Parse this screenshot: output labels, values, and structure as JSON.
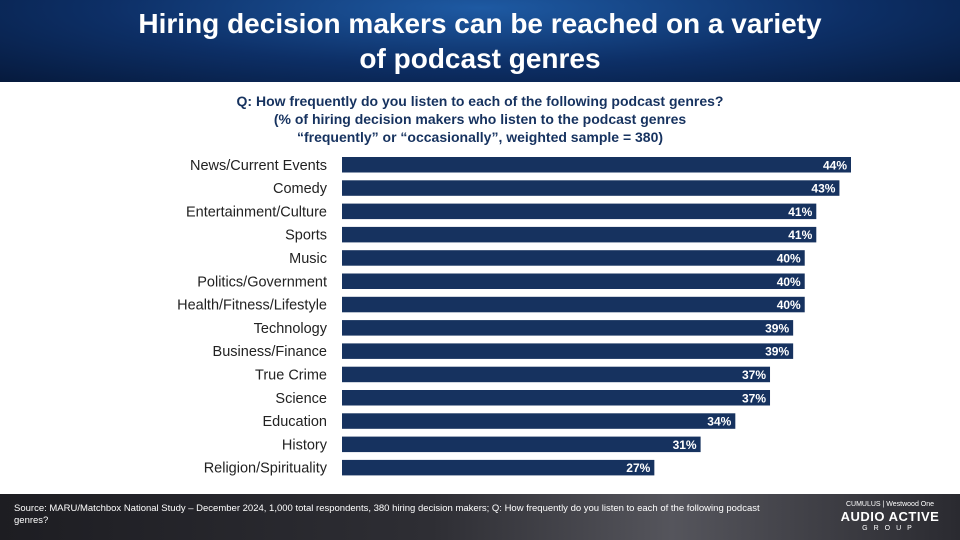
{
  "title": "Hiring decision makers can be reached on a variety of podcast genres",
  "question": {
    "line1": "Q: How frequently do you listen to each of the following podcast genres?",
    "line2": "(% of hiring decision makers who listen to the podcast genres",
    "line3": "“frequently” or “occasionally”, weighted sample = 380)"
  },
  "chart_data": {
    "type": "bar",
    "orientation": "horizontal",
    "categories": [
      "News/Current Events",
      "Comedy",
      "Entertainment/Culture",
      "Sports",
      "Music",
      "Politics/Government",
      "Health/Fitness/Lifestyle",
      "Technology",
      "Business/Finance",
      "True Crime",
      "Science",
      "Education",
      "History",
      "Religion/Spirituality"
    ],
    "values": [
      44,
      43,
      41,
      41,
      40,
      40,
      40,
      39,
      39,
      37,
      37,
      34,
      31,
      27
    ],
    "value_labels": [
      "44%",
      "43%",
      "41%",
      "41%",
      "40%",
      "40%",
      "40%",
      "39%",
      "39%",
      "37%",
      "37%",
      "34%",
      "31%",
      "27%"
    ],
    "xlim": [
      0,
      44
    ],
    "bar_color": "#16325f",
    "grid": false,
    "legend": "none"
  },
  "footer": {
    "source": "Source: MARU/Matchbox National Study – December 2024, 1,000 total respondents, 380 hiring decision makers; Q: How frequently do you listen to each of the following podcast genres?",
    "logo_top": "CUMULUS | Westwood One",
    "logo_main": "AUDIO ACTIVE",
    "logo_sub": "GROUP"
  }
}
